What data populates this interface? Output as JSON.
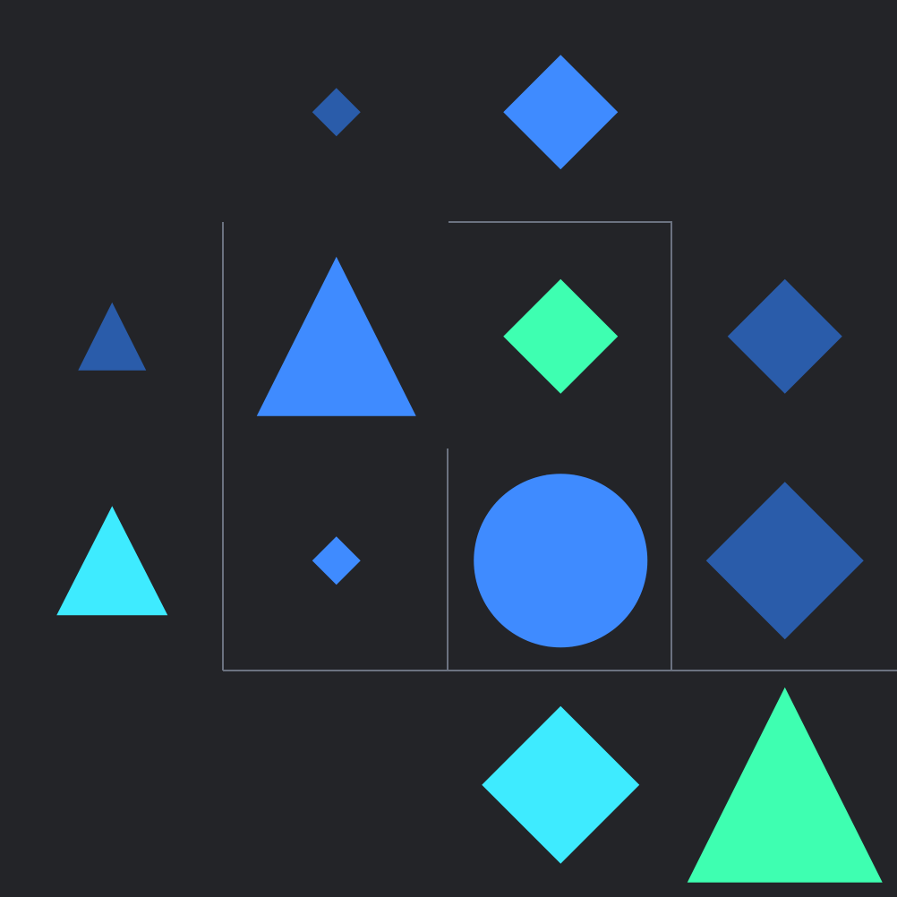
{
  "palette": {
    "background": "#232428",
    "wall": "#6b7280",
    "blue": "#3f8bff",
    "dark_blue": "#2a5caa",
    "cyan": "#3eebff",
    "green": "#3effb1"
  },
  "grid": {
    "rows": 4,
    "cols": 4
  },
  "pieces": [
    {
      "row": 0,
      "col": 1,
      "shape": "diamond",
      "color": "dark_blue",
      "size": "small"
    },
    {
      "row": 0,
      "col": 2,
      "shape": "diamond",
      "color": "blue",
      "size": "medium"
    },
    {
      "row": 1,
      "col": 0,
      "shape": "triangle",
      "color": "dark_blue",
      "size": "small"
    },
    {
      "row": 1,
      "col": 1,
      "shape": "triangle",
      "color": "blue",
      "size": "large"
    },
    {
      "row": 1,
      "col": 2,
      "shape": "diamond",
      "color": "green",
      "size": "medium"
    },
    {
      "row": 1,
      "col": 3,
      "shape": "diamond",
      "color": "dark_blue",
      "size": "medium"
    },
    {
      "row": 2,
      "col": 0,
      "shape": "triangle",
      "color": "cyan",
      "size": "medium"
    },
    {
      "row": 2,
      "col": 1,
      "shape": "diamond",
      "color": "blue",
      "size": "small"
    },
    {
      "row": 2,
      "col": 2,
      "shape": "circle",
      "color": "blue",
      "size": "large"
    },
    {
      "row": 2,
      "col": 3,
      "shape": "diamond",
      "color": "dark_blue",
      "size": "large"
    },
    {
      "row": 3,
      "col": 2,
      "shape": "diamond",
      "color": "cyan",
      "size": "large"
    },
    {
      "row": 3,
      "col": 3,
      "shape": "triangle",
      "color": "green",
      "size": "xlarge"
    }
  ]
}
